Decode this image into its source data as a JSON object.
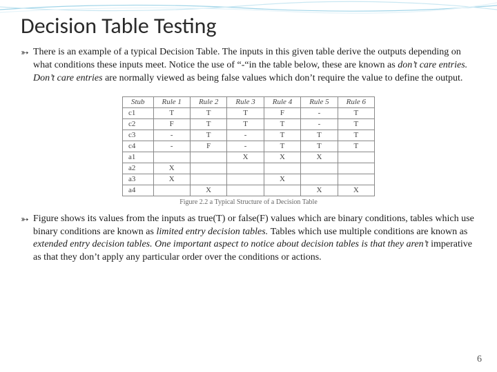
{
  "title": "Decision Table Testing",
  "para1": {
    "pre": "There is an example of a typical Decision Table. The inputs in this given table derive the outputs depending on what conditions these inputs meet. Notice the use of “-“in the table below, these are known as ",
    "i1": "don’t care entries. Don’t care entries ",
    "post": "are normally viewed as being false values which don’t require the value to define the output."
  },
  "table": {
    "headers": [
      "Stub",
      "Rule 1",
      "Rule 2",
      "Rule 3",
      "Rule 4",
      "Rule 5",
      "Rule 6"
    ],
    "rows": [
      [
        "c1",
        "T",
        "T",
        "T",
        "F",
        "-",
        "T"
      ],
      [
        "c2",
        "F",
        "T",
        "T",
        "T",
        "-",
        "T"
      ],
      [
        "c3",
        "-",
        "T",
        "-",
        "T",
        "T",
        "T"
      ],
      [
        "c4",
        "-",
        "F",
        "-",
        "T",
        "T",
        "T"
      ],
      [
        "a1",
        "",
        "",
        "X",
        "X",
        "X",
        ""
      ],
      [
        "a2",
        "X",
        "",
        "",
        "",
        "",
        ""
      ],
      [
        "a3",
        "X",
        "",
        "",
        "X",
        "",
        ""
      ],
      [
        "a4",
        "",
        "X",
        "",
        "",
        "X",
        "X"
      ]
    ],
    "caption": "Figure 2.2 a Typical Structure of a Decision Table",
    "border_color": "#888888",
    "text_color": "#444444",
    "header_fontstyle": "italic",
    "cell_padding": "1px 12px",
    "fontsize": 11
  },
  "para2": {
    "pre": "Figure shows its values from the inputs as true(T) or false(F) values which are binary conditions, tables which use binary conditions are known as ",
    "i1": "limited entry decision tables. ",
    "mid": "Tables which use multiple conditions are known as ",
    "i2": "extended entry decision tables. One important aspect to notice about decision tables is that they aren’t ",
    "post": "imperative as that they don’t apply any particular order over the conditions or actions."
  },
  "page_number": "6",
  "wave": {
    "stroke1": "#9fd4e8",
    "stroke2": "#c9e7f2",
    "stroke3": "#e4f3f9"
  }
}
